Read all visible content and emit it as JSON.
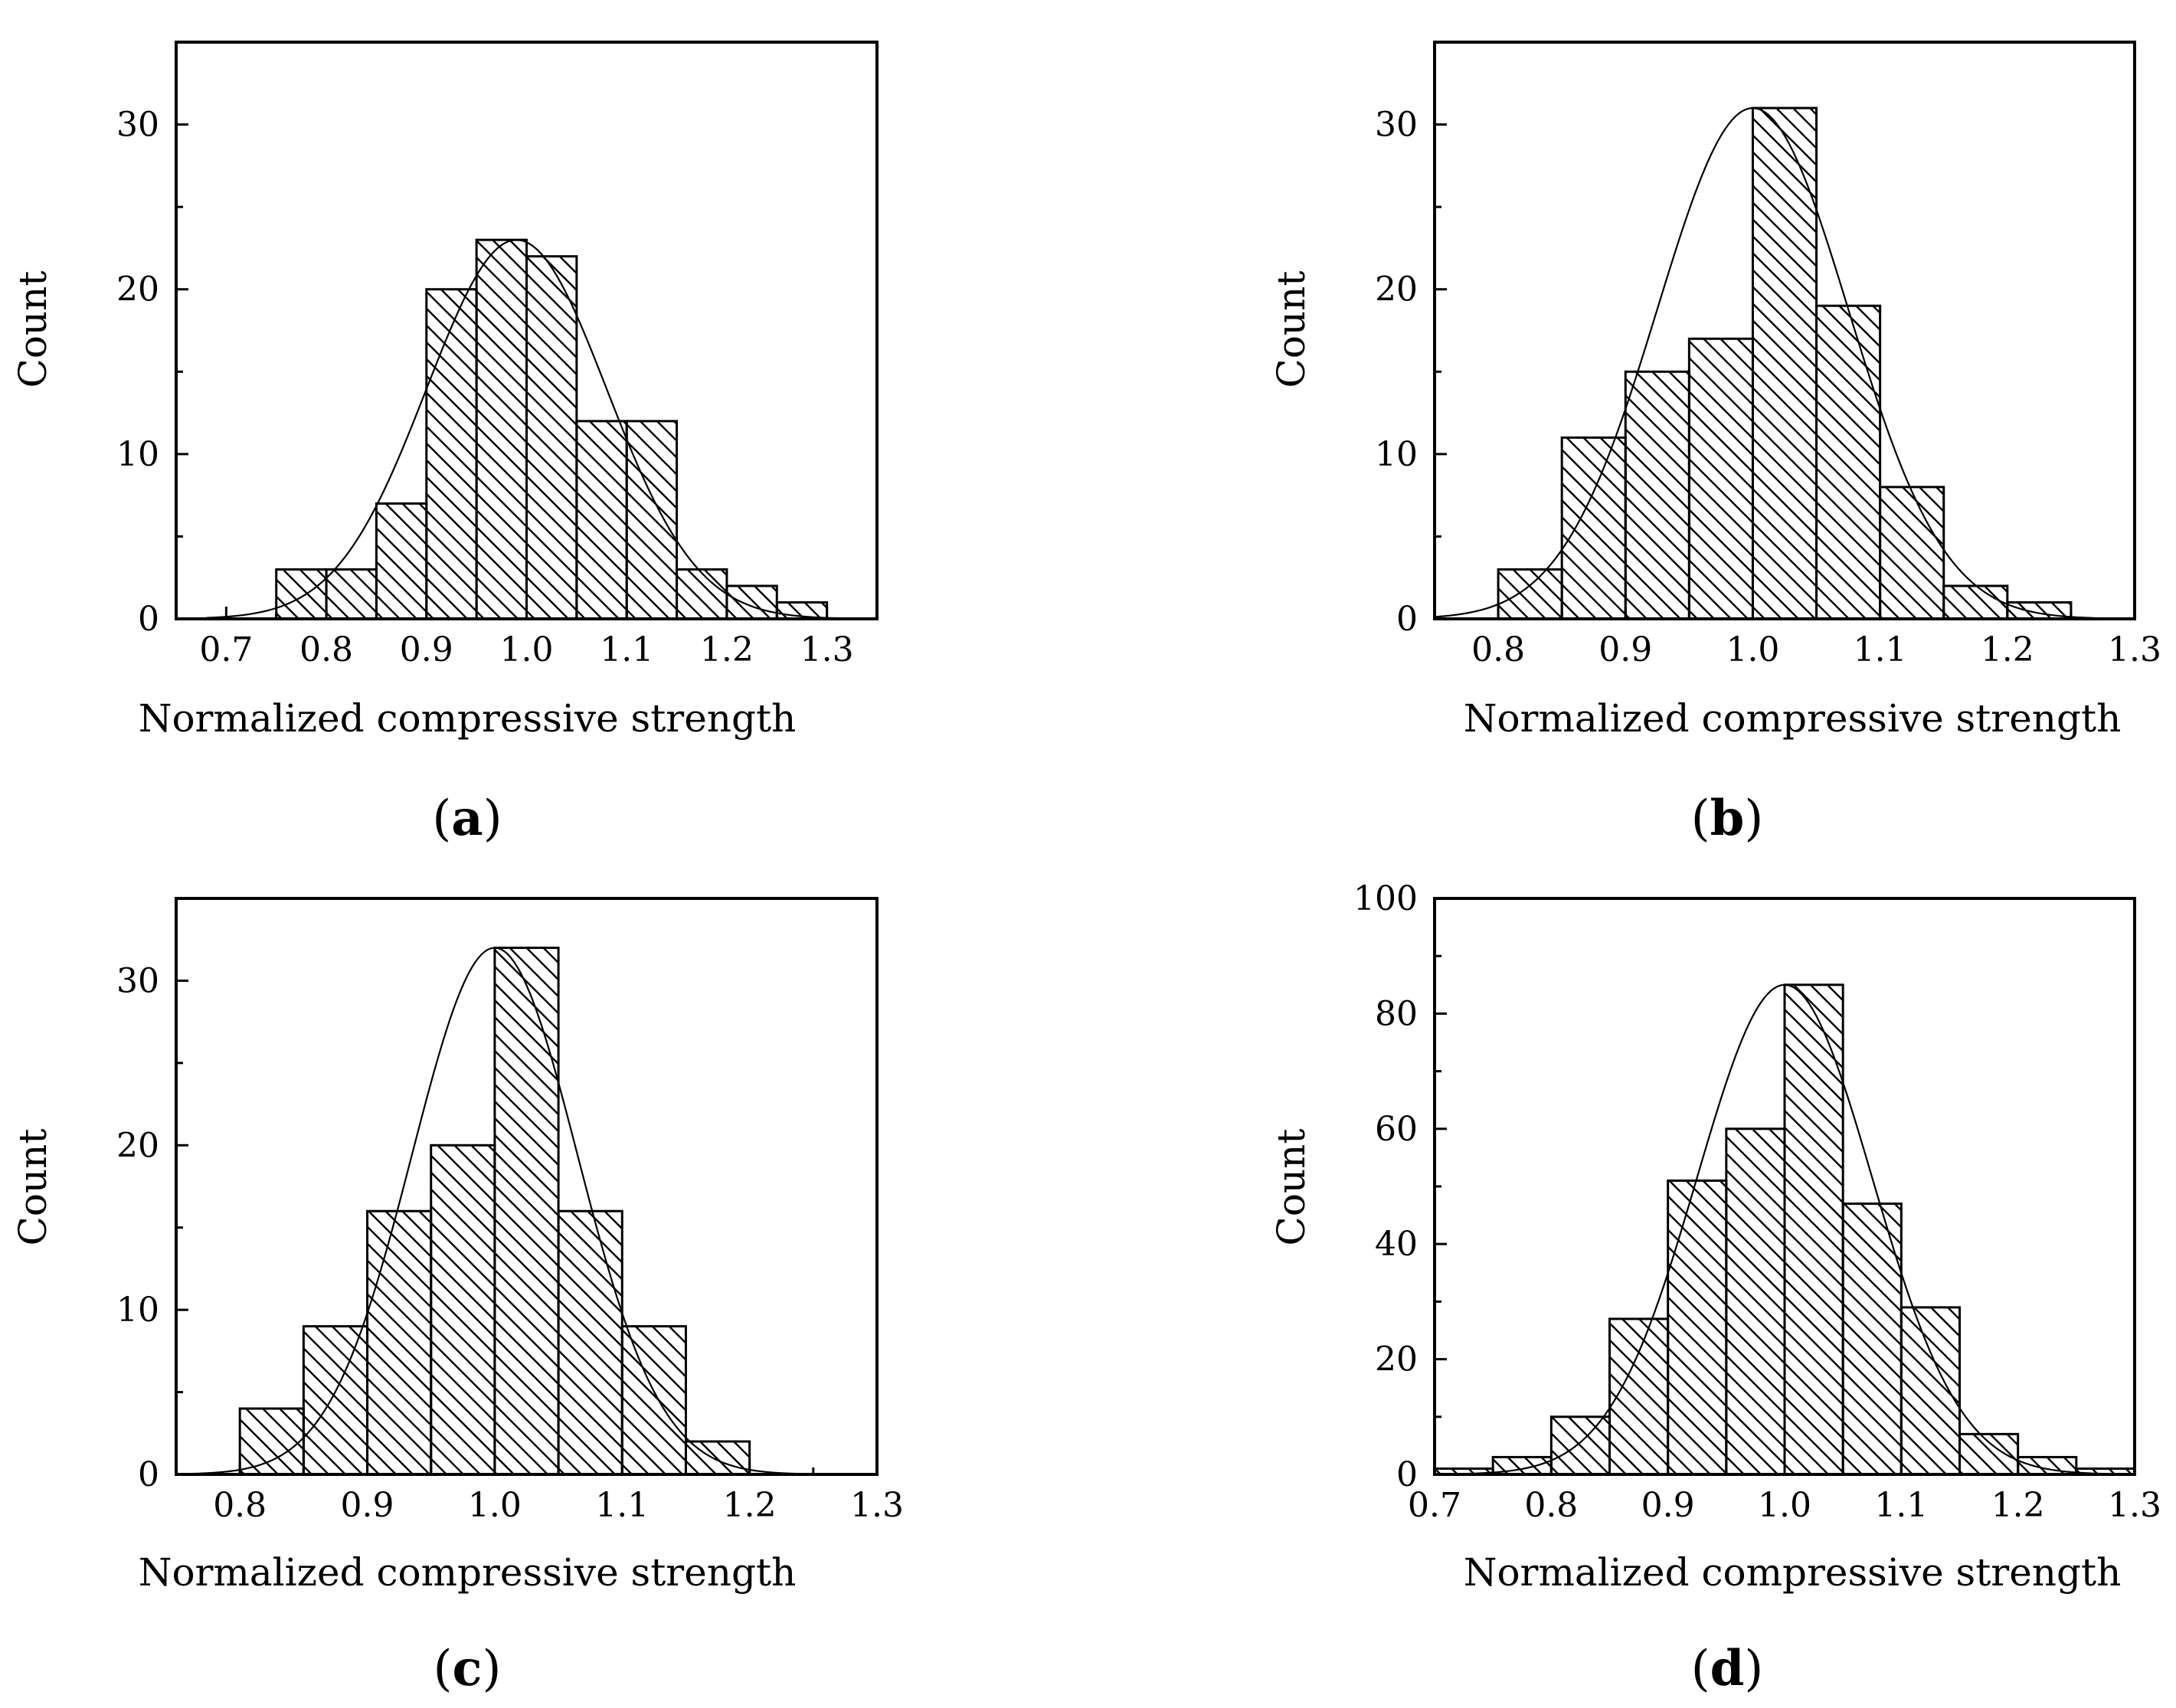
{
  "figure": {
    "caption_parts": [
      "(",
      ")"
    ]
  },
  "colors": {
    "ink": "#000000",
    "paper": "#ffffff"
  },
  "chart_data": [
    {
      "panel": "a",
      "type": "bar",
      "subtype": "histogram",
      "xlabel": "Normalized compressive strength",
      "ylabel": "Count",
      "xlim": [
        0.65,
        1.35
      ],
      "ylim": [
        0,
        35
      ],
      "xticks": [
        0.7,
        0.8,
        0.9,
        1.0,
        1.1,
        1.2,
        1.3
      ],
      "xtick_labels": [
        "0.7",
        "0.8",
        "0.9",
        "1.0",
        "1.1",
        "1.2",
        "1.3"
      ],
      "yticks": [
        0,
        10,
        20,
        30
      ],
      "ytick_labels": [
        "0",
        "10",
        "20",
        "30"
      ],
      "bin_width": 0.05,
      "bins": [
        0.75,
        0.8,
        0.85,
        0.9,
        0.95,
        1.0,
        1.05,
        1.1,
        1.15,
        1.2,
        1.25
      ],
      "values": [
        3,
        3,
        7,
        20,
        23,
        22,
        12,
        12,
        3,
        2,
        1
      ],
      "fit": {
        "type": "normal",
        "mean": 0.99,
        "sd": 0.09,
        "peak": 23
      },
      "fit_range": [
        0.68,
        1.32
      ]
    },
    {
      "panel": "b",
      "type": "bar",
      "subtype": "histogram",
      "xlabel": "Normalized compressive strength",
      "ylabel": "Count",
      "xlim": [
        0.75,
        1.3
      ],
      "ylim": [
        0,
        35
      ],
      "xticks": [
        0.8,
        0.9,
        1.0,
        1.1,
        1.2,
        1.3
      ],
      "xtick_labels": [
        "0.8",
        "0.9",
        "1.0",
        "1.1",
        "1.2",
        "1.3"
      ],
      "yticks": [
        0,
        10,
        20,
        30
      ],
      "ytick_labels": [
        "0",
        "10",
        "20",
        "30"
      ],
      "bin_width": 0.05,
      "bins": [
        0.8,
        0.85,
        0.9,
        0.95,
        1.0,
        1.05,
        1.1,
        1.15,
        1.2
      ],
      "values": [
        3,
        11,
        15,
        17,
        31,
        19,
        8,
        2,
        1
      ],
      "fit": {
        "type": "normal",
        "mean": 1.0,
        "sd": 0.075,
        "peak": 31
      },
      "fit_range": [
        0.75,
        1.28
      ]
    },
    {
      "panel": "c",
      "type": "bar",
      "subtype": "histogram",
      "xlabel": "Normalized compressive strength",
      "ylabel": "Count",
      "xlim": [
        0.75,
        1.3
      ],
      "ylim": [
        0,
        35
      ],
      "xticks": [
        0.8,
        0.9,
        1.0,
        1.1,
        1.2,
        1.3
      ],
      "xtick_labels": [
        "0.8",
        "0.9",
        "1.0",
        "1.1",
        "1.2",
        "1.3"
      ],
      "yticks": [
        0,
        10,
        20,
        30
      ],
      "ytick_labels": [
        "0",
        "10",
        "20",
        "30"
      ],
      "bin_width": 0.05,
      "bins": [
        0.8,
        0.85,
        0.9,
        0.95,
        1.0,
        1.05,
        1.1,
        1.15
      ],
      "values": [
        4,
        9,
        16,
        20,
        32,
        16,
        9,
        2
      ],
      "fit": {
        "type": "normal",
        "mean": 1.0,
        "sd": 0.065,
        "peak": 32
      },
      "fit_range": [
        0.75,
        1.26
      ]
    },
    {
      "panel": "d",
      "type": "bar",
      "subtype": "histogram",
      "xlabel": "Normalized compressive strength",
      "ylabel": "Count",
      "xlim": [
        0.7,
        1.3
      ],
      "ylim": [
        0,
        100
      ],
      "xticks": [
        0.7,
        0.8,
        0.9,
        1.0,
        1.1,
        1.2,
        1.3
      ],
      "xtick_labels": [
        "0.7",
        "0.8",
        "0.9",
        "1.0",
        "1.1",
        "1.2",
        "1.3"
      ],
      "yticks": [
        0,
        20,
        40,
        60,
        80,
        100
      ],
      "ytick_labels": [
        "0",
        "20",
        "40",
        "60",
        "80",
        "100"
      ],
      "bin_width": 0.05,
      "bins": [
        0.7,
        0.75,
        0.8,
        0.85,
        0.9,
        0.95,
        1.0,
        1.05,
        1.1,
        1.15,
        1.2,
        1.25
      ],
      "values": [
        1,
        3,
        10,
        27,
        51,
        60,
        85,
        47,
        29,
        7,
        3,
        1
      ],
      "fit": {
        "type": "normal",
        "mean": 1.0,
        "sd": 0.075,
        "peak": 85
      },
      "fit_range": [
        0.7,
        1.3
      ]
    }
  ]
}
